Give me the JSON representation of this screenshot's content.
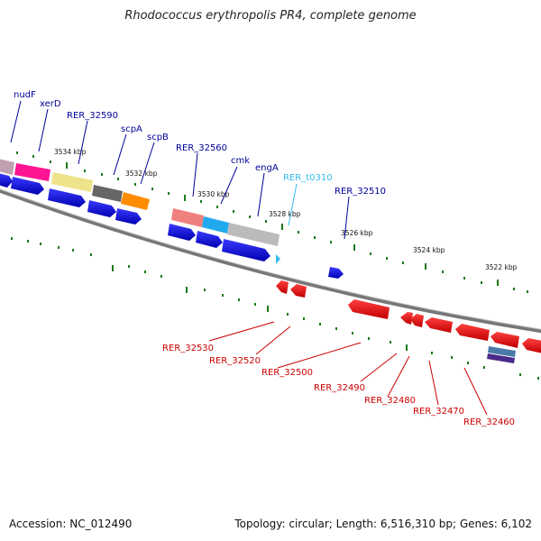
{
  "title": "Rhodococcus erythropolis PR4, complete genome",
  "footer": {
    "accession": "Accession: NC_012490",
    "summary": "Topology: circular; Length: 6,516,310 bp; Genes: 6,102"
  },
  "colors": {
    "forward_cds": "#0000dd",
    "reverse_cds": "#ee0000",
    "forward_label": "#00009a",
    "reverse_label": "#cc0000",
    "trna": "#33bbee",
    "tick": "#1a7a1a",
    "backbone": "#777777"
  },
  "scale_labels": [
    "3534 kbp",
    "3532 kbp",
    "3530 kbp",
    "3528 kbp",
    "3526 kbp",
    "3524 kbp",
    "3522 kbp"
  ],
  "forward_genes": [
    {
      "name": "nudF",
      "color": "#ff1493"
    },
    {
      "name": "xerD",
      "color": "#ff1493"
    },
    {
      "name": "RER_32590",
      "color": "#eee38a"
    },
    {
      "name": "scpA",
      "color": "#666666"
    },
    {
      "name": "scpB",
      "color": "#ff8c00"
    },
    {
      "name": "RER_32560",
      "color": "#f08080"
    },
    {
      "name": "cmk",
      "color": "#22aaee"
    },
    {
      "name": "engA",
      "color": "#bbbbbb"
    },
    {
      "name": "RER_t0310",
      "color": "#33bbee"
    },
    {
      "name": "RER_32510",
      "color": "#0000dd"
    }
  ],
  "reverse_genes": [
    {
      "name": "RER_32530"
    },
    {
      "name": "RER_32520"
    },
    {
      "name": "RER_32500"
    },
    {
      "name": "RER_32490"
    },
    {
      "name": "RER_32480"
    },
    {
      "name": "RER_32470"
    },
    {
      "name": "RER_32460"
    }
  ]
}
